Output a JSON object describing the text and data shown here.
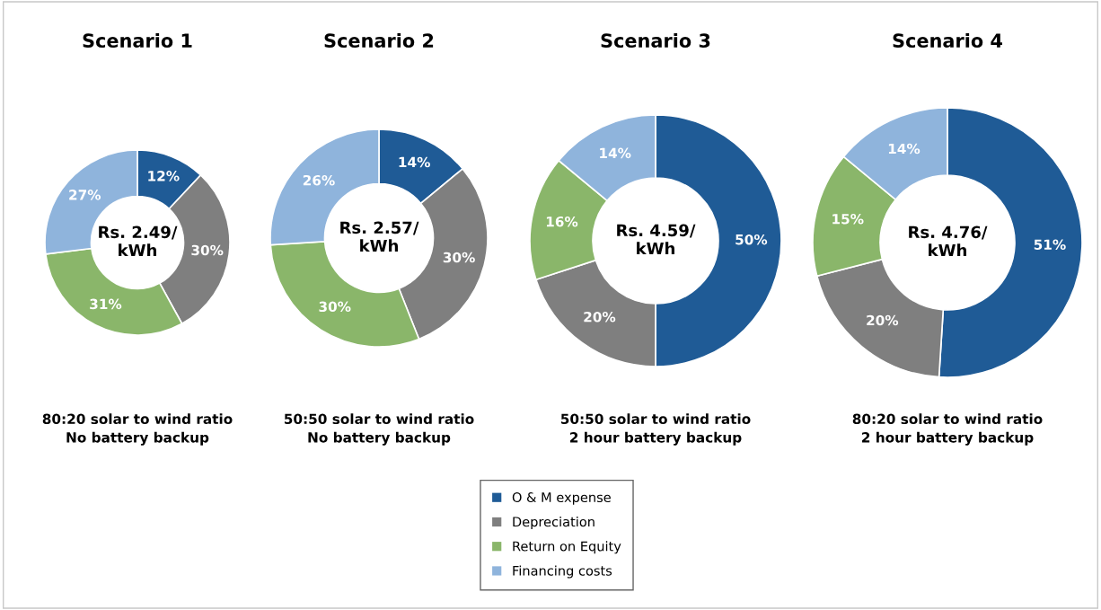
{
  "chart_data": [
    {
      "type": "donut",
      "title": "Scenario 1",
      "categories": [
        "O & M expense",
        "Depreciation",
        "Return on Equity",
        "Financing costs"
      ],
      "values": [
        12,
        30,
        31,
        27
      ],
      "value_labels": [
        "12%",
        "30%",
        "31%",
        "27%"
      ],
      "colors": [
        "#1f5b96",
        "#7f7f7f",
        "#8ab66a",
        "#8fb4dc"
      ],
      "annotations": [
        "Rs. 2.49/\nkWh",
        "80:20 solar to wind ratio\nNo battery backup"
      ],
      "legend": "bottom"
    },
    {
      "type": "donut",
      "title": "Scenario 2",
      "categories": [
        null,
        null,
        null,
        null
      ],
      "values": [
        14,
        30,
        30,
        26
      ],
      "value_labels": [
        "14%",
        "30%",
        "30%",
        "26%"
      ],
      "colors": [
        "#1f5b96",
        "#7f7f7f",
        "#8ab66a",
        "#8fb4dc"
      ],
      "annotations": [
        "Rs. 2.57/\nkWh",
        "50:50 solar to wind ratio\nNo battery backup"
      ]
    },
    {
      "type": "donut",
      "title": "Scenario 3",
      "categories": [
        null,
        null,
        null,
        null
      ],
      "values": [
        50,
        20,
        16,
        14
      ],
      "value_labels": [
        "50%",
        "20%",
        "16%",
        "14%"
      ],
      "colors": [
        "#1f5b96",
        "#7f7f7f",
        "#8ab66a",
        "#8fb4dc"
      ],
      "annotations": [
        "Rs. 4.59/\nkWh",
        "50:50 solar to wind ratio\n2 hour battery backup"
      ]
    },
    {
      "type": "donut",
      "title": "Scenario 4",
      "categories": [
        null,
        null,
        null,
        null
      ],
      "values": [
        51,
        20,
        15,
        14
      ],
      "value_labels": [
        "51%",
        "20%",
        "15%",
        "14%"
      ],
      "colors": [
        "#1f5b96",
        "#7f7f7f",
        "#8ab66a",
        "#8fb4dc"
      ],
      "annotations": [
        "Rs. 4.76/\nkWh",
        "80:20 solar to wind ratio\n2 hour battery backup"
      ]
    }
  ]
}
